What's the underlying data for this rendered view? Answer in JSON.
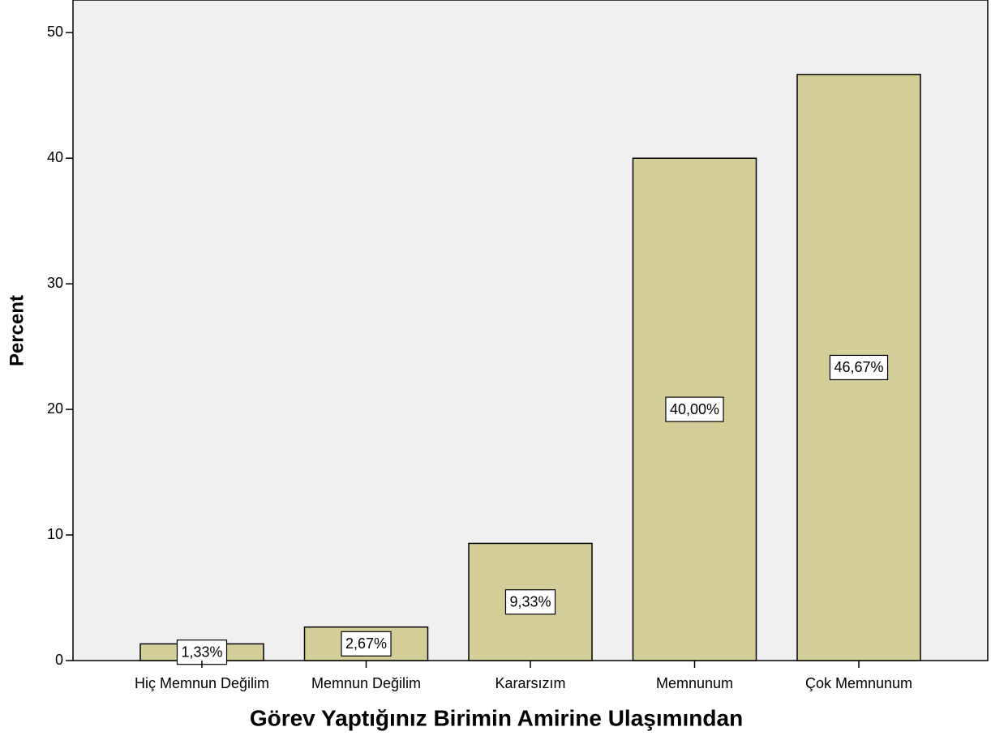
{
  "chart_data": {
    "type": "bar",
    "x_label": "Görev Yaptığınız Birimin Amirine Ulaşımından",
    "y_label": "Percent",
    "categories": [
      "Hiç Memnun Değilim",
      "Memnun Değilim",
      "Kararsızım",
      "Memnunum",
      "Çok Memnunum"
    ],
    "values": [
      1.33,
      2.67,
      9.33,
      40.0,
      46.67
    ],
    "value_labels": [
      "1,33%",
      "2,67%",
      "9,33%",
      "40,00%",
      "46,67%"
    ],
    "color": "#d4cf98",
    "ylim": [
      0,
      52.6
    ],
    "yticks": [
      0,
      10,
      20,
      30,
      40,
      50
    ],
    "grid": false
  }
}
